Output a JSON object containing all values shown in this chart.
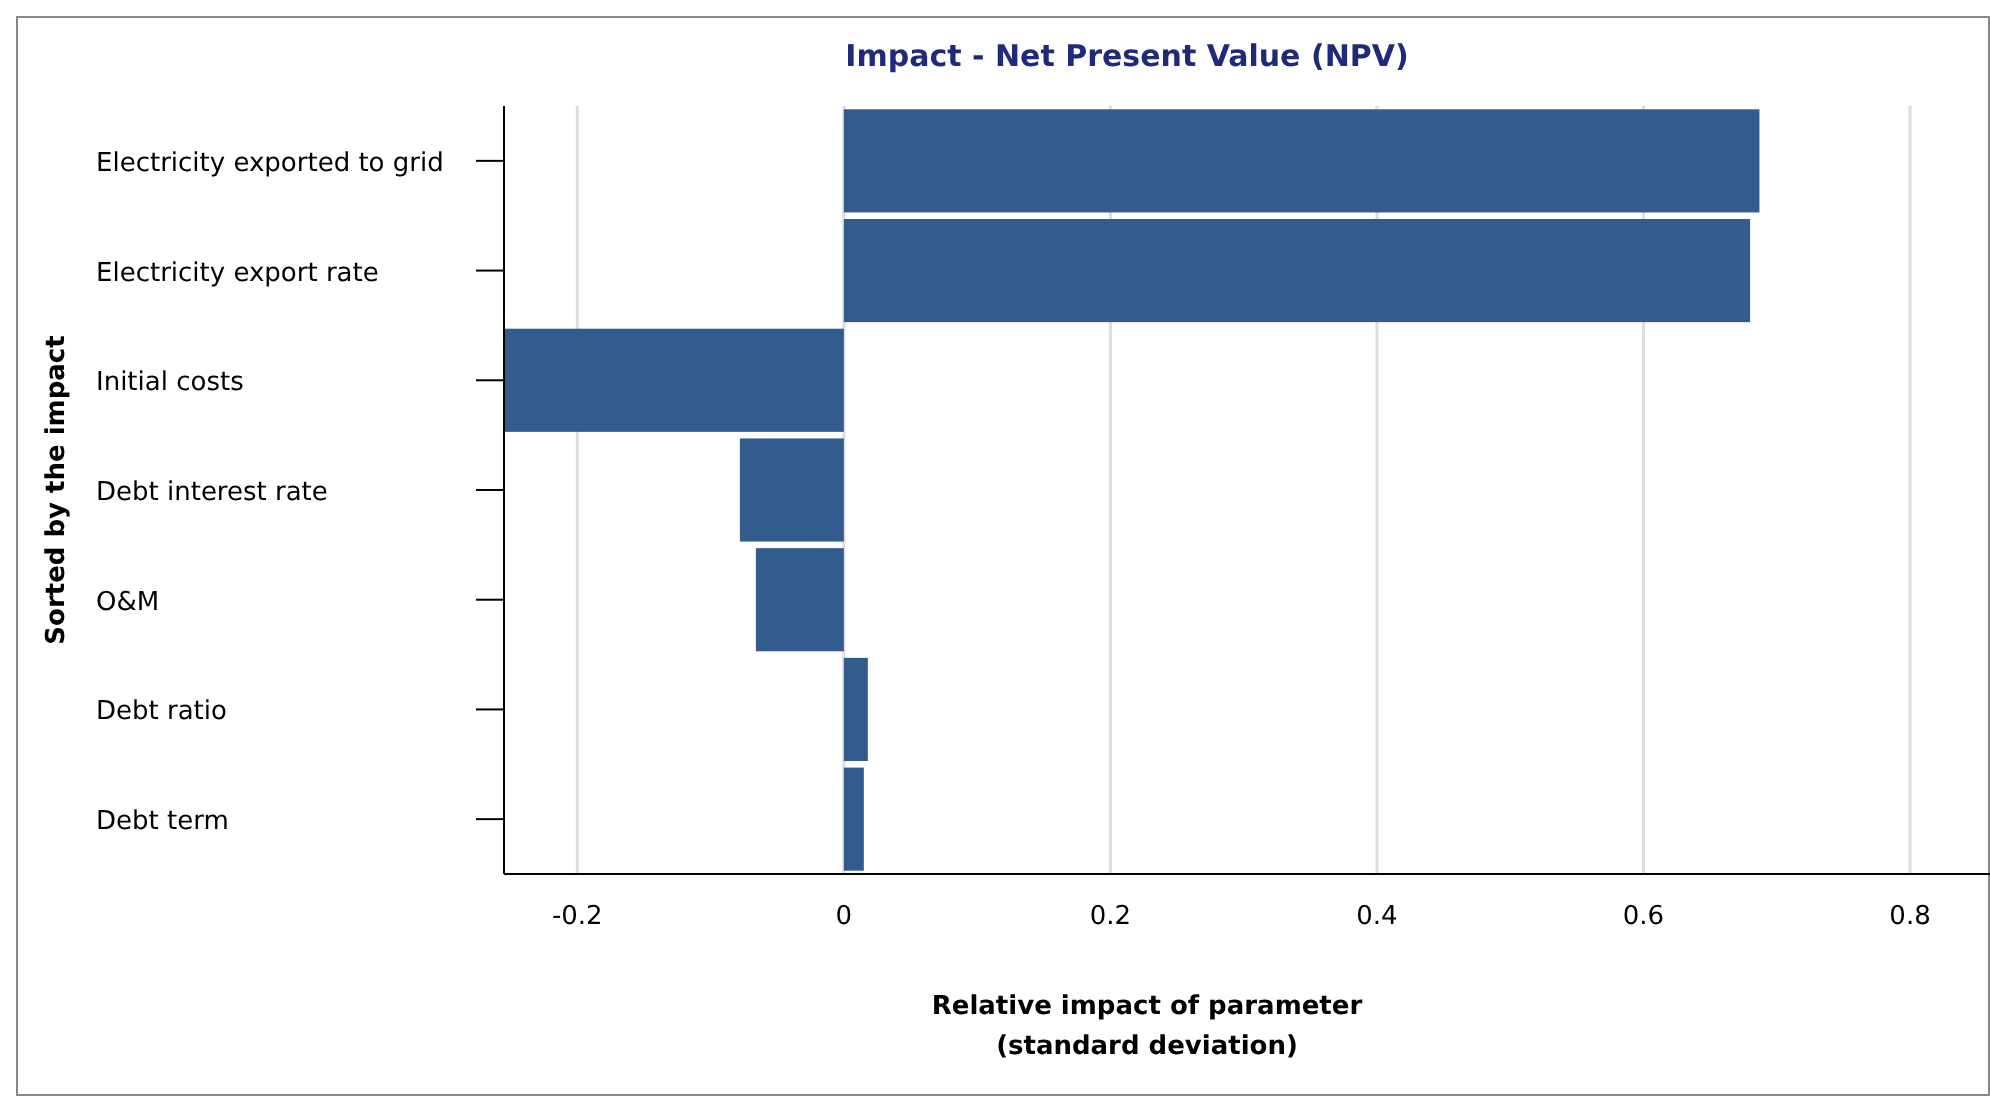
{
  "chart_data": {
    "type": "bar",
    "orientation": "horizontal",
    "title": "Impact - Net Present Value (NPV)",
    "xlabel": "Relative impact of parameter\n(standard deviation)",
    "ylabel": "Sorted by the impact",
    "categories": [
      "Electricity exported to grid",
      "Electricity export rate",
      "Initial costs",
      "Debt interest rate",
      "O&M",
      "Debt ratio",
      "Debt term"
    ],
    "values": [
      0.687,
      0.68,
      -0.255,
      -0.078,
      -0.066,
      0.018,
      0.015
    ],
    "color": "#335c8e",
    "xlim": [
      -0.255,
      0.86
    ],
    "xticks": [
      -0.2,
      0,
      0.2,
      0.4,
      0.6,
      0.8
    ],
    "grid": "x"
  }
}
